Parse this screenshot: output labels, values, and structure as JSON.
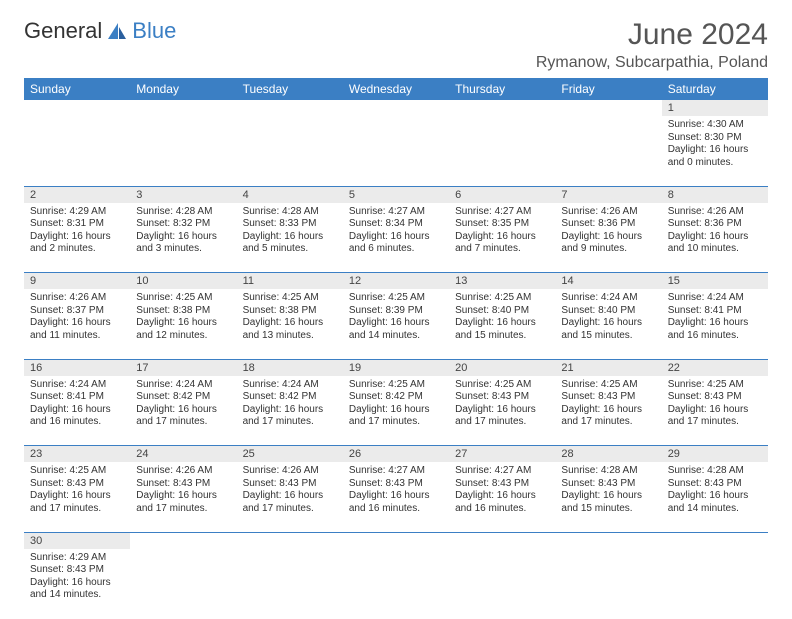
{
  "logo": {
    "text1": "General",
    "text2": "Blue"
  },
  "title": "June 2024",
  "location": "Rymanow, Subcarpathia, Poland",
  "colors": {
    "header_bg": "#3b7fc4",
    "daynum_bg": "#ebebeb",
    "border": "#3b7fc4"
  },
  "weekdays": [
    "Sunday",
    "Monday",
    "Tuesday",
    "Wednesday",
    "Thursday",
    "Friday",
    "Saturday"
  ],
  "weeks": [
    [
      null,
      null,
      null,
      null,
      null,
      null,
      {
        "d": "1",
        "sunrise": "Sunrise: 4:30 AM",
        "sunset": "Sunset: 8:30 PM",
        "daylight1": "Daylight: 16 hours",
        "daylight2": "and 0 minutes."
      }
    ],
    [
      {
        "d": "2",
        "sunrise": "Sunrise: 4:29 AM",
        "sunset": "Sunset: 8:31 PM",
        "daylight1": "Daylight: 16 hours",
        "daylight2": "and 2 minutes."
      },
      {
        "d": "3",
        "sunrise": "Sunrise: 4:28 AM",
        "sunset": "Sunset: 8:32 PM",
        "daylight1": "Daylight: 16 hours",
        "daylight2": "and 3 minutes."
      },
      {
        "d": "4",
        "sunrise": "Sunrise: 4:28 AM",
        "sunset": "Sunset: 8:33 PM",
        "daylight1": "Daylight: 16 hours",
        "daylight2": "and 5 minutes."
      },
      {
        "d": "5",
        "sunrise": "Sunrise: 4:27 AM",
        "sunset": "Sunset: 8:34 PM",
        "daylight1": "Daylight: 16 hours",
        "daylight2": "and 6 minutes."
      },
      {
        "d": "6",
        "sunrise": "Sunrise: 4:27 AM",
        "sunset": "Sunset: 8:35 PM",
        "daylight1": "Daylight: 16 hours",
        "daylight2": "and 7 minutes."
      },
      {
        "d": "7",
        "sunrise": "Sunrise: 4:26 AM",
        "sunset": "Sunset: 8:36 PM",
        "daylight1": "Daylight: 16 hours",
        "daylight2": "and 9 minutes."
      },
      {
        "d": "8",
        "sunrise": "Sunrise: 4:26 AM",
        "sunset": "Sunset: 8:36 PM",
        "daylight1": "Daylight: 16 hours",
        "daylight2": "and 10 minutes."
      }
    ],
    [
      {
        "d": "9",
        "sunrise": "Sunrise: 4:26 AM",
        "sunset": "Sunset: 8:37 PM",
        "daylight1": "Daylight: 16 hours",
        "daylight2": "and 11 minutes."
      },
      {
        "d": "10",
        "sunrise": "Sunrise: 4:25 AM",
        "sunset": "Sunset: 8:38 PM",
        "daylight1": "Daylight: 16 hours",
        "daylight2": "and 12 minutes."
      },
      {
        "d": "11",
        "sunrise": "Sunrise: 4:25 AM",
        "sunset": "Sunset: 8:38 PM",
        "daylight1": "Daylight: 16 hours",
        "daylight2": "and 13 minutes."
      },
      {
        "d": "12",
        "sunrise": "Sunrise: 4:25 AM",
        "sunset": "Sunset: 8:39 PM",
        "daylight1": "Daylight: 16 hours",
        "daylight2": "and 14 minutes."
      },
      {
        "d": "13",
        "sunrise": "Sunrise: 4:25 AM",
        "sunset": "Sunset: 8:40 PM",
        "daylight1": "Daylight: 16 hours",
        "daylight2": "and 15 minutes."
      },
      {
        "d": "14",
        "sunrise": "Sunrise: 4:24 AM",
        "sunset": "Sunset: 8:40 PM",
        "daylight1": "Daylight: 16 hours",
        "daylight2": "and 15 minutes."
      },
      {
        "d": "15",
        "sunrise": "Sunrise: 4:24 AM",
        "sunset": "Sunset: 8:41 PM",
        "daylight1": "Daylight: 16 hours",
        "daylight2": "and 16 minutes."
      }
    ],
    [
      {
        "d": "16",
        "sunrise": "Sunrise: 4:24 AM",
        "sunset": "Sunset: 8:41 PM",
        "daylight1": "Daylight: 16 hours",
        "daylight2": "and 16 minutes."
      },
      {
        "d": "17",
        "sunrise": "Sunrise: 4:24 AM",
        "sunset": "Sunset: 8:42 PM",
        "daylight1": "Daylight: 16 hours",
        "daylight2": "and 17 minutes."
      },
      {
        "d": "18",
        "sunrise": "Sunrise: 4:24 AM",
        "sunset": "Sunset: 8:42 PM",
        "daylight1": "Daylight: 16 hours",
        "daylight2": "and 17 minutes."
      },
      {
        "d": "19",
        "sunrise": "Sunrise: 4:25 AM",
        "sunset": "Sunset: 8:42 PM",
        "daylight1": "Daylight: 16 hours",
        "daylight2": "and 17 minutes."
      },
      {
        "d": "20",
        "sunrise": "Sunrise: 4:25 AM",
        "sunset": "Sunset: 8:43 PM",
        "daylight1": "Daylight: 16 hours",
        "daylight2": "and 17 minutes."
      },
      {
        "d": "21",
        "sunrise": "Sunrise: 4:25 AM",
        "sunset": "Sunset: 8:43 PM",
        "daylight1": "Daylight: 16 hours",
        "daylight2": "and 17 minutes."
      },
      {
        "d": "22",
        "sunrise": "Sunrise: 4:25 AM",
        "sunset": "Sunset: 8:43 PM",
        "daylight1": "Daylight: 16 hours",
        "daylight2": "and 17 minutes."
      }
    ],
    [
      {
        "d": "23",
        "sunrise": "Sunrise: 4:25 AM",
        "sunset": "Sunset: 8:43 PM",
        "daylight1": "Daylight: 16 hours",
        "daylight2": "and 17 minutes."
      },
      {
        "d": "24",
        "sunrise": "Sunrise: 4:26 AM",
        "sunset": "Sunset: 8:43 PM",
        "daylight1": "Daylight: 16 hours",
        "daylight2": "and 17 minutes."
      },
      {
        "d": "25",
        "sunrise": "Sunrise: 4:26 AM",
        "sunset": "Sunset: 8:43 PM",
        "daylight1": "Daylight: 16 hours",
        "daylight2": "and 17 minutes."
      },
      {
        "d": "26",
        "sunrise": "Sunrise: 4:27 AM",
        "sunset": "Sunset: 8:43 PM",
        "daylight1": "Daylight: 16 hours",
        "daylight2": "and 16 minutes."
      },
      {
        "d": "27",
        "sunrise": "Sunrise: 4:27 AM",
        "sunset": "Sunset: 8:43 PM",
        "daylight1": "Daylight: 16 hours",
        "daylight2": "and 16 minutes."
      },
      {
        "d": "28",
        "sunrise": "Sunrise: 4:28 AM",
        "sunset": "Sunset: 8:43 PM",
        "daylight1": "Daylight: 16 hours",
        "daylight2": "and 15 minutes."
      },
      {
        "d": "29",
        "sunrise": "Sunrise: 4:28 AM",
        "sunset": "Sunset: 8:43 PM",
        "daylight1": "Daylight: 16 hours",
        "daylight2": "and 14 minutes."
      }
    ],
    [
      {
        "d": "30",
        "sunrise": "Sunrise: 4:29 AM",
        "sunset": "Sunset: 8:43 PM",
        "daylight1": "Daylight: 16 hours",
        "daylight2": "and 14 minutes."
      },
      null,
      null,
      null,
      null,
      null,
      null
    ]
  ]
}
